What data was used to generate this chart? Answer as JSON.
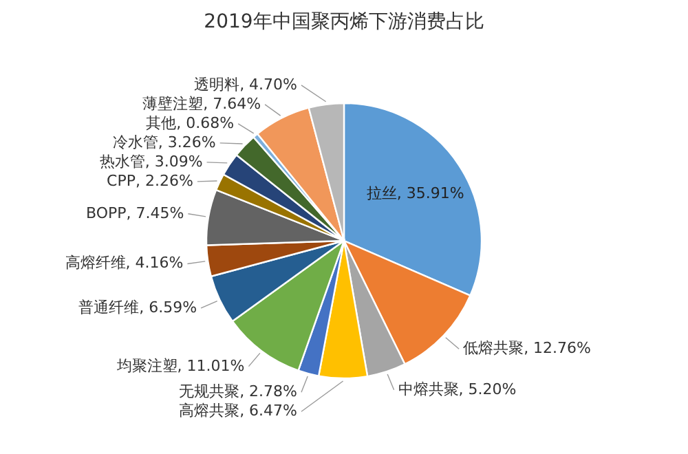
{
  "chart_data": {
    "type": "pie",
    "title": "2019年中国聚丙烯下游消费占比",
    "categories": [
      "拉丝",
      "低熔共聚",
      "中熔共聚",
      "高熔共聚",
      "无规共聚",
      "均聚注塑",
      "普通纤维",
      "高熔纤维",
      "BOPP",
      "CPP",
      "热水管",
      "冷水管",
      "其他",
      "薄壁注塑",
      "透明料"
    ],
    "values": [
      35.91,
      12.76,
      5.2,
      6.47,
      2.78,
      11.01,
      6.59,
      4.16,
      7.45,
      2.26,
      3.09,
      3.26,
      0.68,
      7.64,
      4.7
    ],
    "colors": [
      "#5b9bd5",
      "#ed7d31",
      "#a5a5a5",
      "#ffc000",
      "#4472c4",
      "#70ad47",
      "#255e91",
      "#9e480e",
      "#636363",
      "#997300",
      "#264478",
      "#43682b",
      "#7cafdd",
      "#f1975a",
      "#b7b7b7"
    ],
    "value_labels": [
      "35.91%",
      "12.76%",
      "5.20%",
      "6.47%",
      "2.78%",
      "11.01%",
      "6.59%",
      "4.16%",
      "7.45%",
      "2.26%",
      "3.09%",
      "3.26%",
      "0.68%",
      "7.64%",
      "4.70%"
    ]
  }
}
